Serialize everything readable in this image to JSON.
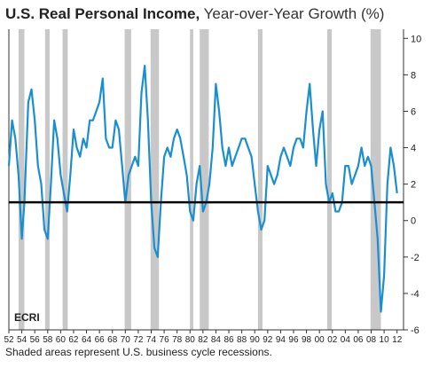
{
  "title_bold": "U.S. Real Personal Income,",
  "title_light": "Year-over-Year Growth (%)",
  "caption": "Shaded areas represent U.S. business cycle recessions.",
  "logo_text": "ECRI",
  "colors": {
    "line": "#1a8fd0",
    "recession": "#c8c8c8",
    "reference": "#000000",
    "axis": "#333333"
  },
  "chart_data": {
    "type": "line",
    "title": "U.S. Real Personal Income, Year-over-Year Growth (%)",
    "xlabel": "",
    "ylabel": "",
    "xlim": [
      1952,
      2013
    ],
    "ylim": [
      -6,
      10.5
    ],
    "x_ticks": [
      "52",
      "54",
      "56",
      "58",
      "60",
      "62",
      "64",
      "66",
      "68",
      "70",
      "72",
      "74",
      "76",
      "78",
      "80",
      "82",
      "84",
      "86",
      "88",
      "90",
      "92",
      "94",
      "96",
      "98",
      "00",
      "02",
      "04",
      "06",
      "08",
      "10",
      "12"
    ],
    "y_ticks": [
      10,
      8,
      6,
      4,
      2,
      0,
      -2,
      -4,
      -6
    ],
    "reference_line": 1,
    "recessions": [
      [
        1953.5,
        1954.4
      ],
      [
        1957.6,
        1958.3
      ],
      [
        1960.3,
        1961.1
      ],
      [
        1969.9,
        1970.9
      ],
      [
        1973.9,
        1975.2
      ],
      [
        1980.0,
        1980.5
      ],
      [
        1981.5,
        1982.9
      ],
      [
        1990.5,
        1991.2
      ],
      [
        2001.2,
        2001.9
      ],
      [
        2007.9,
        2009.5
      ]
    ],
    "x": [
      1952.0,
      1952.5,
      1953.0,
      1953.5,
      1954.0,
      1954.4,
      1955.0,
      1955.5,
      1956.0,
      1956.5,
      1957.0,
      1957.5,
      1958.0,
      1958.5,
      1959.0,
      1959.5,
      1960.0,
      1960.5,
      1961.0,
      1961.5,
      1962.0,
      1962.5,
      1963.0,
      1963.5,
      1964.0,
      1964.5,
      1965.0,
      1965.5,
      1966.0,
      1966.5,
      1967.0,
      1967.5,
      1968.0,
      1968.5,
      1969.0,
      1969.5,
      1970.0,
      1970.5,
      1971.0,
      1971.5,
      1972.0,
      1972.5,
      1973.0,
      1973.5,
      1974.0,
      1974.5,
      1975.0,
      1975.5,
      1976.0,
      1976.5,
      1977.0,
      1977.5,
      1978.0,
      1978.5,
      1979.0,
      1979.5,
      1980.0,
      1980.5,
      1981.0,
      1981.5,
      1982.0,
      1982.5,
      1983.0,
      1983.5,
      1984.0,
      1984.5,
      1985.0,
      1985.5,
      1986.0,
      1986.5,
      1987.0,
      1987.5,
      1988.0,
      1988.5,
      1989.0,
      1989.5,
      1990.0,
      1990.5,
      1991.0,
      1991.5,
      1992.0,
      1992.5,
      1993.0,
      1993.5,
      1994.0,
      1994.5,
      1995.0,
      1995.5,
      1996.0,
      1996.5,
      1997.0,
      1997.5,
      1998.0,
      1998.5,
      1999.0,
      1999.5,
      2000.0,
      2000.5,
      2001.0,
      2001.5,
      2002.0,
      2002.5,
      2003.0,
      2003.5,
      2004.0,
      2004.5,
      2005.0,
      2005.5,
      2006.0,
      2006.5,
      2007.0,
      2007.5,
      2008.0,
      2008.5,
      2009.0,
      2009.5,
      2010.0,
      2010.5,
      2011.0,
      2011.5,
      2012.0
    ],
    "series": [
      {
        "values": [
          3.0,
          5.5,
          4.5,
          2.5,
          -1.0,
          1.0,
          6.5,
          7.2,
          5.5,
          3.0,
          2.0,
          -0.5,
          -1.0,
          2.0,
          5.5,
          4.5,
          2.5,
          1.5,
          0.5,
          2.5,
          5.0,
          4.0,
          3.5,
          4.5,
          4.0,
          5.5,
          5.5,
          6.0,
          6.5,
          7.8,
          4.5,
          4.0,
          4.0,
          5.5,
          5.0,
          3.0,
          1.0,
          2.5,
          3.0,
          3.5,
          3.0,
          7.0,
          8.5,
          5.5,
          1.0,
          -1.5,
          -2.0,
          1.0,
          3.5,
          4.0,
          3.5,
          4.5,
          5.0,
          4.5,
          3.5,
          2.5,
          0.5,
          0.0,
          2.0,
          3.0,
          0.5,
          1.0,
          2.0,
          4.0,
          7.5,
          6.0,
          4.0,
          3.0,
          4.0,
          3.0,
          3.5,
          4.0,
          4.5,
          4.5,
          4.0,
          3.5,
          2.0,
          0.5,
          -0.5,
          0.0,
          3.0,
          2.5,
          2.0,
          2.5,
          3.5,
          4.0,
          3.5,
          3.0,
          4.0,
          4.5,
          4.5,
          4.0,
          6.0,
          7.5,
          5.0,
          3.0,
          5.0,
          6.0,
          2.0,
          1.0,
          1.5,
          0.5,
          0.5,
          1.0,
          3.0,
          3.0,
          2.0,
          2.5,
          3.0,
          4.0,
          3.0,
          3.5,
          3.0,
          1.0,
          -1.0,
          -5.0,
          -3.0,
          2.0,
          4.0,
          3.0,
          1.5
        ]
      }
    ]
  }
}
